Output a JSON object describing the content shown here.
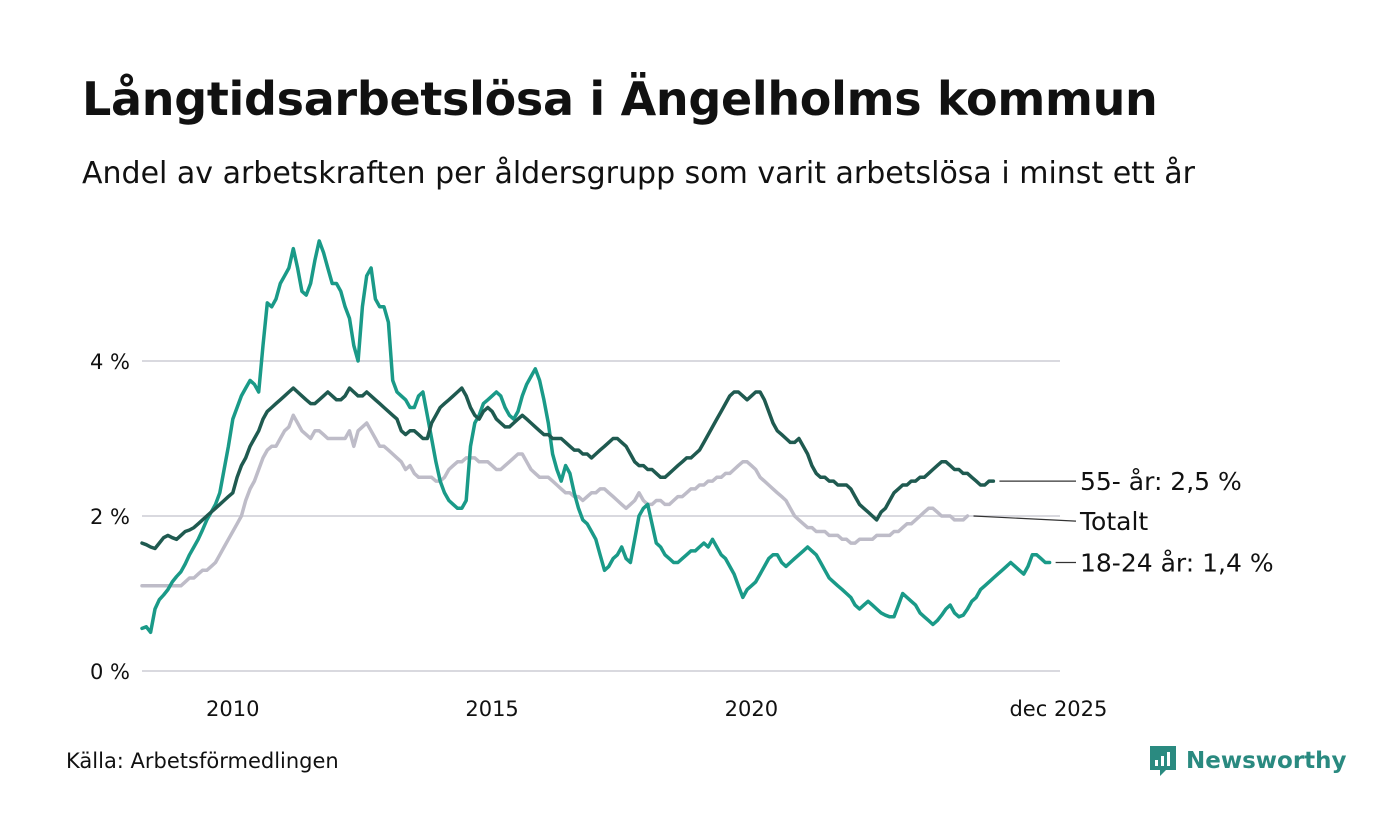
{
  "header": {
    "title": "Långtidsarbetslösa i Ängelholms kommun",
    "subtitle": "Andel av arbetskraften per åldersgrupp som varit arbetslösa i minst ett år"
  },
  "footer": {
    "source": "Källa: Arbetsförmedlingen",
    "brand": "Newsworthy",
    "brand_icon": "newsworthy-logo-icon"
  },
  "colors": {
    "dark_green": "#1f5a50",
    "teal": "#1a9a88",
    "grey": "#bebcc8",
    "grid": "#d9d9df",
    "brand": "#2a8a80"
  },
  "chart_data": {
    "type": "line",
    "x_start": 2008.25,
    "x_step": 0.0833333,
    "ylim": [
      0,
      6
    ],
    "xlim": [
      2008.25,
      2025.95
    ],
    "grid": true,
    "y_ticks": [
      {
        "value": 0,
        "label": "0 %"
      },
      {
        "value": 2,
        "label": "2 %"
      },
      {
        "value": 4,
        "label": "4 %"
      }
    ],
    "x_ticks": [
      {
        "value": 2010,
        "label": "2010"
      },
      {
        "value": 2015,
        "label": "2015"
      },
      {
        "value": 2020,
        "label": "2020"
      },
      {
        "value": 2025.92,
        "label": "dec 2025"
      }
    ],
    "series": [
      {
        "name": "Totalt",
        "label": "Totalt",
        "color": "#bebcc8",
        "values": [
          1.1,
          1.1,
          1.1,
          1.1,
          1.1,
          1.1,
          1.1,
          1.1,
          1.1,
          1.1,
          1.15,
          1.2,
          1.2,
          1.25,
          1.3,
          1.3,
          1.35,
          1.4,
          1.5,
          1.6,
          1.7,
          1.8,
          1.9,
          2.0,
          2.2,
          2.35,
          2.45,
          2.6,
          2.75,
          2.85,
          2.9,
          2.9,
          3.0,
          3.1,
          3.15,
          3.3,
          3.2,
          3.1,
          3.05,
          3.0,
          3.1,
          3.1,
          3.05,
          3.0,
          3.0,
          3.0,
          3.0,
          3.0,
          3.1,
          2.9,
          3.1,
          3.15,
          3.2,
          3.1,
          3.0,
          2.9,
          2.9,
          2.85,
          2.8,
          2.75,
          2.7,
          2.6,
          2.65,
          2.55,
          2.5,
          2.5,
          2.5,
          2.5,
          2.45,
          2.45,
          2.5,
          2.6,
          2.65,
          2.7,
          2.7,
          2.75,
          2.75,
          2.75,
          2.7,
          2.7,
          2.7,
          2.65,
          2.6,
          2.6,
          2.65,
          2.7,
          2.75,
          2.8,
          2.8,
          2.7,
          2.6,
          2.55,
          2.5,
          2.5,
          2.5,
          2.45,
          2.4,
          2.35,
          2.3,
          2.3,
          2.25,
          2.25,
          2.2,
          2.25,
          2.3,
          2.3,
          2.35,
          2.35,
          2.3,
          2.25,
          2.2,
          2.15,
          2.1,
          2.15,
          2.2,
          2.3,
          2.2,
          2.15,
          2.15,
          2.2,
          2.2,
          2.15,
          2.15,
          2.2,
          2.25,
          2.25,
          2.3,
          2.35,
          2.35,
          2.4,
          2.4,
          2.45,
          2.45,
          2.5,
          2.5,
          2.55,
          2.55,
          2.6,
          2.65,
          2.7,
          2.7,
          2.65,
          2.6,
          2.5,
          2.45,
          2.4,
          2.35,
          2.3,
          2.25,
          2.2,
          2.1,
          2.0,
          1.95,
          1.9,
          1.85,
          1.85,
          1.8,
          1.8,
          1.8,
          1.75,
          1.75,
          1.75,
          1.7,
          1.7,
          1.65,
          1.65,
          1.7,
          1.7,
          1.7,
          1.7,
          1.75,
          1.75,
          1.75,
          1.75,
          1.8,
          1.8,
          1.85,
          1.9,
          1.9,
          1.95,
          2.0,
          2.05,
          2.1,
          2.1,
          2.05,
          2.0,
          2.0,
          2.0,
          1.95,
          1.95,
          1.95,
          2.0
        ]
      },
      {
        "name": "18-24 år",
        "label": "18-24 år: 1,4 %",
        "color": "#1a9a88",
        "values": [
          0.55,
          0.57,
          0.5,
          0.8,
          0.92,
          0.98,
          1.05,
          1.15,
          1.22,
          1.28,
          1.38,
          1.5,
          1.6,
          1.7,
          1.82,
          1.95,
          2.05,
          2.15,
          2.3,
          2.6,
          2.9,
          3.25,
          3.4,
          3.55,
          3.65,
          3.75,
          3.7,
          3.6,
          4.2,
          4.75,
          4.7,
          4.8,
          5.0,
          5.1,
          5.2,
          5.45,
          5.2,
          4.9,
          4.85,
          5.0,
          5.3,
          5.55,
          5.4,
          5.2,
          5.0,
          5.0,
          4.9,
          4.7,
          4.55,
          4.2,
          4.0,
          4.7,
          5.1,
          5.2,
          4.8,
          4.7,
          4.7,
          4.5,
          3.75,
          3.6,
          3.55,
          3.5,
          3.4,
          3.4,
          3.55,
          3.6,
          3.3,
          3.0,
          2.7,
          2.45,
          2.3,
          2.2,
          2.15,
          2.1,
          2.1,
          2.2,
          2.9,
          3.2,
          3.3,
          3.45,
          3.5,
          3.55,
          3.6,
          3.55,
          3.4,
          3.3,
          3.25,
          3.35,
          3.55,
          3.7,
          3.8,
          3.9,
          3.75,
          3.5,
          3.2,
          2.8,
          2.6,
          2.45,
          2.65,
          2.55,
          2.3,
          2.1,
          1.95,
          1.9,
          1.8,
          1.7,
          1.5,
          1.3,
          1.35,
          1.45,
          1.5,
          1.6,
          1.45,
          1.4,
          1.7,
          2.0,
          2.1,
          2.15,
          1.9,
          1.65,
          1.6,
          1.5,
          1.45,
          1.4,
          1.4,
          1.45,
          1.5,
          1.55,
          1.55,
          1.6,
          1.65,
          1.6,
          1.7,
          1.6,
          1.5,
          1.45,
          1.35,
          1.25,
          1.1,
          0.95,
          1.05,
          1.1,
          1.15,
          1.25,
          1.35,
          1.45,
          1.5,
          1.5,
          1.4,
          1.35,
          1.4,
          1.45,
          1.5,
          1.55,
          1.6,
          1.55,
          1.5,
          1.4,
          1.3,
          1.2,
          1.15,
          1.1,
          1.05,
          1.0,
          0.95,
          0.85,
          0.8,
          0.85,
          0.9,
          0.85,
          0.8,
          0.75,
          0.72,
          0.7,
          0.7,
          0.85,
          1.0,
          0.95,
          0.9,
          0.85,
          0.75,
          0.7,
          0.65,
          0.6,
          0.65,
          0.72,
          0.8,
          0.85,
          0.75,
          0.7,
          0.72,
          0.8,
          0.9,
          0.95,
          1.05,
          1.1,
          1.15,
          1.2,
          1.25,
          1.3,
          1.35,
          1.4,
          1.35,
          1.3,
          1.25,
          1.35,
          1.5,
          1.5,
          1.45,
          1.4,
          1.4
        ]
      },
      {
        "name": "55- år",
        "label": "55- år: 2,5 %",
        "color": "#1f5a50",
        "values": [
          1.65,
          1.63,
          1.6,
          1.58,
          1.65,
          1.72,
          1.75,
          1.72,
          1.7,
          1.75,
          1.8,
          1.82,
          1.85,
          1.9,
          1.95,
          2.0,
          2.05,
          2.1,
          2.15,
          2.2,
          2.25,
          2.3,
          2.5,
          2.65,
          2.75,
          2.9,
          3.0,
          3.1,
          3.25,
          3.35,
          3.4,
          3.45,
          3.5,
          3.55,
          3.6,
          3.65,
          3.6,
          3.55,
          3.5,
          3.45,
          3.45,
          3.5,
          3.55,
          3.6,
          3.55,
          3.5,
          3.5,
          3.55,
          3.65,
          3.6,
          3.55,
          3.55,
          3.6,
          3.55,
          3.5,
          3.45,
          3.4,
          3.35,
          3.3,
          3.25,
          3.1,
          3.05,
          3.1,
          3.1,
          3.05,
          3.0,
          3.0,
          3.2,
          3.3,
          3.4,
          3.45,
          3.5,
          3.55,
          3.6,
          3.65,
          3.55,
          3.4,
          3.3,
          3.25,
          3.35,
          3.4,
          3.35,
          3.25,
          3.2,
          3.15,
          3.15,
          3.2,
          3.25,
          3.3,
          3.25,
          3.2,
          3.15,
          3.1,
          3.05,
          3.05,
          3.0,
          3.0,
          3.0,
          2.95,
          2.9,
          2.85,
          2.85,
          2.8,
          2.8,
          2.75,
          2.8,
          2.85,
          2.9,
          2.95,
          3.0,
          3.0,
          2.95,
          2.9,
          2.8,
          2.7,
          2.65,
          2.65,
          2.6,
          2.6,
          2.55,
          2.5,
          2.5,
          2.55,
          2.6,
          2.65,
          2.7,
          2.75,
          2.75,
          2.8,
          2.85,
          2.95,
          3.05,
          3.15,
          3.25,
          3.35,
          3.45,
          3.55,
          3.6,
          3.6,
          3.55,
          3.5,
          3.55,
          3.6,
          3.6,
          3.5,
          3.35,
          3.2,
          3.1,
          3.05,
          3.0,
          2.95,
          2.95,
          3.0,
          2.9,
          2.8,
          2.65,
          2.55,
          2.5,
          2.5,
          2.45,
          2.45,
          2.4,
          2.4,
          2.4,
          2.35,
          2.25,
          2.15,
          2.1,
          2.05,
          2.0,
          1.95,
          2.05,
          2.1,
          2.2,
          2.3,
          2.35,
          2.4,
          2.4,
          2.45,
          2.45,
          2.5,
          2.5,
          2.55,
          2.6,
          2.65,
          2.7,
          2.7,
          2.65,
          2.6,
          2.6,
          2.55,
          2.55,
          2.5,
          2.45,
          2.4,
          2.4,
          2.45,
          2.45
        ]
      }
    ]
  }
}
